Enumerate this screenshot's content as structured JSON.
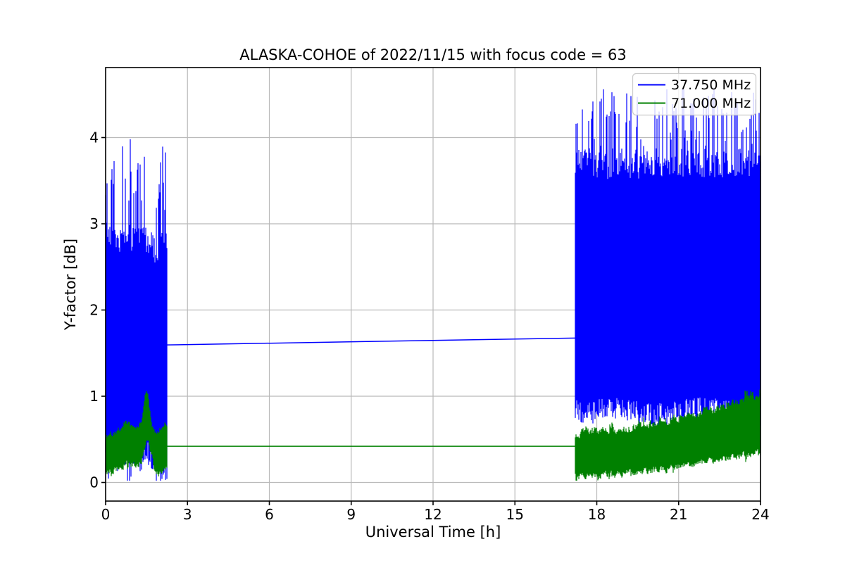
{
  "chart_data": {
    "type": "line",
    "title": "ALASKA-COHOE of 2022/11/15 with focus code = 63",
    "xlabel": "Universal Time [h]",
    "ylabel": "Y-factor [dB]",
    "xlim": [
      0,
      24
    ],
    "ylim": [
      -0.216,
      4.812
    ],
    "xticks": [
      0,
      3,
      6,
      9,
      12,
      15,
      18,
      21,
      24
    ],
    "xtick_labels": [
      "0",
      "3",
      "6",
      "9",
      "12",
      "15",
      "18",
      "21",
      "24"
    ],
    "yticks": [
      0,
      1,
      2,
      3,
      4
    ],
    "ytick_labels": [
      "0",
      "1",
      "2",
      "3",
      "4"
    ],
    "grid": true,
    "grid_color": "#b9b9b9",
    "spine_color": "#000000",
    "background": "#ffffff",
    "legend": {
      "position": "upper right",
      "entries": [
        {
          "label": "37.750 MHz",
          "color": "#0000ff"
        },
        {
          "label": "71.000 MHz",
          "color": "#008000"
        }
      ]
    },
    "series": [
      {
        "name": "37.750 MHz",
        "color": "#0000ff",
        "description": "Noisy Y-factor trace recorded 0-2.25 h and 17.2-24 h UT; straight interpolation line across the daytime gap rising from 1.60 to 1.68 dB; night noise spans roughly 0.1-3.95 dB before the gap and 0.6-4.55 dB after it.",
        "segments": [
          {
            "kind": "noise",
            "t0": 0,
            "t1": 2.25,
            "low": [
              [
                0,
                0.42
              ],
              [
                0.9,
                0.5
              ],
              [
                1.5,
                0.55
              ],
              [
                1.8,
                0.35
              ],
              [
                2.25,
                0.3
              ]
            ],
            "lowJitter": 0.28,
            "dipChance": 0.18,
            "dipDepth": 0.38,
            "high": [
              [
                0,
                2.75
              ],
              [
                0.4,
                2.6
              ],
              [
                1.0,
                2.65
              ],
              [
                1.4,
                2.7
              ],
              [
                1.9,
                2.5
              ],
              [
                2.1,
                2.75
              ],
              [
                2.25,
                2.6
              ]
            ],
            "highJitter": 0.3,
            "spikeChance": 0.38,
            "spikeExtra": 1.15,
            "smooth": 0,
            "minClamp": 0.02,
            "maxClamp": 3.98
          },
          {
            "kind": "line",
            "points": [
              [
                2.25,
                1.595
              ],
              [
                17.2,
                1.675
              ]
            ]
          },
          {
            "kind": "noise",
            "t0": 17.2,
            "t1": 24,
            "low": [
              [
                17.2,
                0.95
              ],
              [
                18.5,
                1.0
              ],
              [
                20,
                0.92
              ],
              [
                22,
                1.0
              ],
              [
                24,
                0.88
              ]
            ],
            "lowJitter": 0.27,
            "dipChance": 0.1,
            "dipDepth": 0.28,
            "high": [
              [
                17.2,
                3.55
              ],
              [
                19,
                3.5
              ],
              [
                21,
                3.55
              ],
              [
                24,
                3.5
              ]
            ],
            "highJitter": 0.35,
            "spikeChance": 0.4,
            "spikeExtra": 0.9,
            "smooth": 0,
            "minClamp": 0.05,
            "maxClamp": 4.56
          }
        ]
      },
      {
        "name": "71.000 MHz",
        "color": "#008000",
        "description": "Noisy Y-factor band 0.1-0.6 dB with a bump to about 1.1 dB near 1.5 h UT; flat interpolation line at 0.42 dB across the 2.25-17.2 h gap; evening band rises from 0.05-0.5 dB at 17.2 h to 0.35-1.0 dB at 24 h.",
        "segments": [
          {
            "kind": "noise",
            "t0": 0,
            "t1": 2.25,
            "low": [
              [
                0,
                0.2
              ],
              [
                0.5,
                0.25
              ],
              [
                0.8,
                0.3
              ],
              [
                1.1,
                0.25
              ],
              [
                1.3,
                0.33
              ],
              [
                1.5,
                0.6
              ],
              [
                1.65,
                0.4
              ],
              [
                1.8,
                0.18
              ],
              [
                2.0,
                0.2
              ],
              [
                2.25,
                0.28
              ]
            ],
            "lowJitter": 0.14,
            "dipChance": 0.12,
            "dipDepth": 0.12,
            "high": [
              [
                0,
                0.48
              ],
              [
                0.5,
                0.55
              ],
              [
                0.8,
                0.62
              ],
              [
                1.1,
                0.55
              ],
              [
                1.3,
                0.68
              ],
              [
                1.5,
                1.05
              ],
              [
                1.65,
                0.62
              ],
              [
                1.8,
                0.5
              ],
              [
                2.1,
                0.6
              ],
              [
                2.25,
                0.6
              ]
            ],
            "highJitter": 0.12,
            "spikeChance": 0.12,
            "spikeExtra": 0.12,
            "smooth": 0.5,
            "minClamp": 0.02,
            "maxClamp": 1.17
          },
          {
            "kind": "line",
            "points": [
              [
                2.25,
                0.42
              ],
              [
                17.2,
                0.42
              ]
            ]
          },
          {
            "kind": "noise",
            "t0": 17.2,
            "t1": 24,
            "low": [
              [
                17.2,
                0.12
              ],
              [
                19,
                0.18
              ],
              [
                20.5,
                0.22
              ],
              [
                22,
                0.3
              ],
              [
                24,
                0.42
              ]
            ],
            "lowJitter": 0.12,
            "dipChance": 0.15,
            "dipDepth": 0.1,
            "high": [
              [
                17.2,
                0.5
              ],
              [
                19,
                0.55
              ],
              [
                20.5,
                0.63
              ],
              [
                22,
                0.75
              ],
              [
                23.3,
                0.88
              ],
              [
                24,
                0.95
              ]
            ],
            "highJitter": 0.14,
            "spikeChance": 0.15,
            "spikeExtra": 0.12,
            "smooth": 0.45,
            "minClamp": 0.02,
            "maxClamp": 1.08
          }
        ]
      }
    ]
  }
}
